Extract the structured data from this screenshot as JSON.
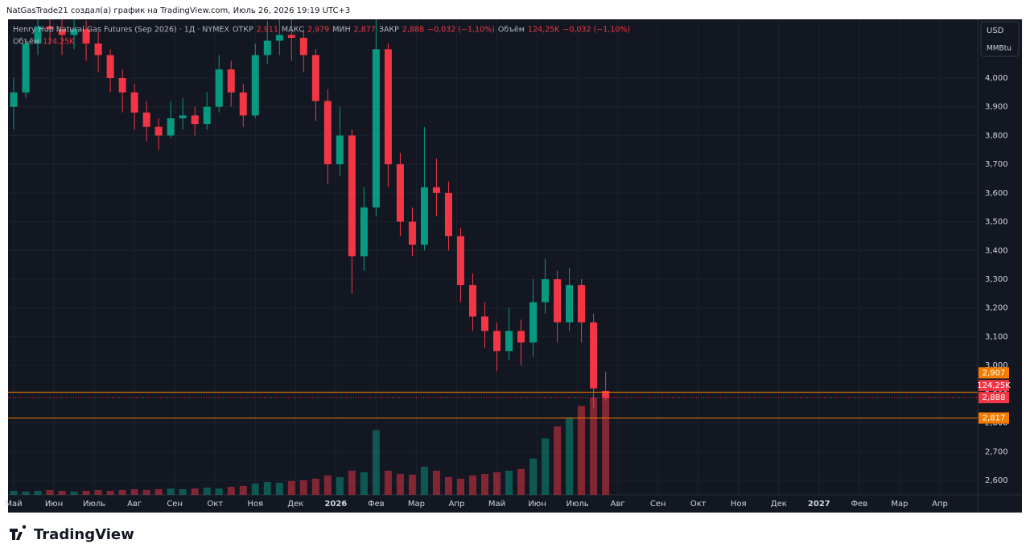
{
  "header": {
    "credit": "NatGasTrade21 создал(а) график на TradingView.com, Июль 26, 2026 19:19 UTC+3"
  },
  "chart_data": {
    "type": "candlestick",
    "legend": {
      "symbol": "Henry Hub Natural Gas Futures (Sep 2026) · 1Д · NYMEX",
      "open_label": "ОТКР",
      "open": "2,911",
      "high_label": "МАКС",
      "high": "2,979",
      "low_label": "МИН",
      "low": "2,877",
      "close_label": "ЗАКР",
      "close": "2,888",
      "change": "−0,032 (−1,10%)",
      "volume_label": "Объём",
      "volume": "124,25K",
      "volume_change": "−0,032 (−1,10%)"
    },
    "currency": "USD",
    "unit": "MMBtu",
    "up_color": "#089981",
    "down_color": "#f23645",
    "x": [
      0,
      0.3,
      0.6,
      0.9,
      1.2,
      1.5,
      1.8,
      2.1,
      2.4,
      2.7,
      3.0,
      3.3,
      3.6,
      3.9,
      4.2,
      4.5,
      4.8,
      5.1,
      5.4,
      5.7,
      6.0,
      6.3,
      6.6,
      6.9,
      7.2,
      7.5,
      7.8,
      8.1,
      8.4,
      8.7,
      9.0,
      9.3,
      9.6,
      9.9,
      10.2,
      10.5,
      10.8,
      11.1,
      11.4,
      11.7,
      12.0,
      12.3,
      12.6,
      12.9,
      13.2,
      13.5,
      13.8,
      14.1,
      14.4,
      14.7
    ],
    "open": [
      3.9,
      3.95,
      4.12,
      4.18,
      4.17,
      4.15,
      4.17,
      4.12,
      4.08,
      4.0,
      3.95,
      3.88,
      3.83,
      3.8,
      3.86,
      3.87,
      3.84,
      3.9,
      4.03,
      3.95,
      3.87,
      4.08,
      4.13,
      4.15,
      4.14,
      4.08,
      3.92,
      3.7,
      3.8,
      3.38,
      3.55,
      4.1,
      3.7,
      3.5,
      3.42,
      3.62,
      3.6,
      3.45,
      3.28,
      3.17,
      3.12,
      3.05,
      3.12,
      3.08,
      3.22,
      3.3,
      3.15,
      3.28,
      3.15,
      2.911
    ],
    "high": [
      4.0,
      4.14,
      4.22,
      4.22,
      4.21,
      4.22,
      4.2,
      4.16,
      4.1,
      4.03,
      3.98,
      3.92,
      3.86,
      3.92,
      3.93,
      3.9,
      3.95,
      4.08,
      4.06,
      3.98,
      4.12,
      4.2,
      4.22,
      4.22,
      4.17,
      4.1,
      3.96,
      3.9,
      3.82,
      3.62,
      4.22,
      4.12,
      3.74,
      3.55,
      3.83,
      3.72,
      3.64,
      3.48,
      3.32,
      3.22,
      3.15,
      3.2,
      3.16,
      3.3,
      3.37,
      3.33,
      3.34,
      3.3,
      3.18,
      2.979
    ],
    "low": [
      3.82,
      3.93,
      4.08,
      4.12,
      4.08,
      4.1,
      4.06,
      4.02,
      3.95,
      3.88,
      3.82,
      3.78,
      3.75,
      3.79,
      3.82,
      3.8,
      3.82,
      3.88,
      3.9,
      3.83,
      3.86,
      4.05,
      4.08,
      4.06,
      4.02,
      3.85,
      3.63,
      3.66,
      3.25,
      3.33,
      3.52,
      3.62,
      3.45,
      3.38,
      3.4,
      3.52,
      3.4,
      3.22,
      3.12,
      3.06,
      2.98,
      3.02,
      3.0,
      3.03,
      3.18,
      3.08,
      3.12,
      3.08,
      2.85,
      2.877
    ],
    "close": [
      3.95,
      4.12,
      4.18,
      4.17,
      4.15,
      4.17,
      4.12,
      4.08,
      4.0,
      3.95,
      3.88,
      3.83,
      3.8,
      3.86,
      3.87,
      3.84,
      3.9,
      4.03,
      3.95,
      3.87,
      4.08,
      4.13,
      4.15,
      4.14,
      4.08,
      3.92,
      3.7,
      3.8,
      3.38,
      3.55,
      4.1,
      3.7,
      3.5,
      3.42,
      3.62,
      3.6,
      3.45,
      3.28,
      3.17,
      3.12,
      3.05,
      3.12,
      3.08,
      3.22,
      3.3,
      3.15,
      3.28,
      3.15,
      2.92,
      2.888
    ],
    "volume": [
      5,
      4,
      5,
      6,
      5,
      4,
      5,
      6,
      5,
      6,
      7,
      6,
      7,
      8,
      7,
      8,
      9,
      8,
      10,
      11,
      14,
      16,
      15,
      17,
      18,
      20,
      24,
      22,
      30,
      28,
      80,
      30,
      26,
      25,
      35,
      30,
      22,
      20,
      24,
      26,
      28,
      30,
      32,
      45,
      70,
      85,
      95,
      110,
      120,
      124.25
    ],
    "volume_tag": "124,25K",
    "volume_ylim": [
      0,
      589
    ],
    "last_price": {
      "value": 2.888,
      "label": "2,888"
    },
    "levels": [
      {
        "value": 2.907,
        "label": "2,907",
        "color": "#f57c00"
      },
      {
        "value": 2.817,
        "label": "2,817",
        "color": "#f57c00"
      }
    ],
    "xlim": [
      -0.14,
      23.94
    ],
    "xticks": [
      {
        "value": 0,
        "label": "Май"
      },
      {
        "value": 1,
        "label": "Июн"
      },
      {
        "value": 2,
        "label": "Июль"
      },
      {
        "value": 3,
        "label": "Авг"
      },
      {
        "value": 4,
        "label": "Сен"
      },
      {
        "value": 5,
        "label": "Окт"
      },
      {
        "value": 6,
        "label": "Ноя"
      },
      {
        "value": 7,
        "label": "Дек"
      },
      {
        "value": 8,
        "label": "2026"
      },
      {
        "value": 9,
        "label": "Фев"
      },
      {
        "value": 10,
        "label": "Мар"
      },
      {
        "value": 11,
        "label": "Апр"
      },
      {
        "value": 12,
        "label": "Май"
      },
      {
        "value": 13,
        "label": "Июн"
      },
      {
        "value": 14,
        "label": "Июль"
      },
      {
        "value": 15,
        "label": "Авг"
      },
      {
        "value": 16,
        "label": "Сен"
      },
      {
        "value": 17,
        "label": "Окт"
      },
      {
        "value": 18,
        "label": "Ноя"
      },
      {
        "value": 19,
        "label": "Дек"
      },
      {
        "value": 20,
        "label": "2027"
      },
      {
        "value": 21,
        "label": "Фев"
      },
      {
        "value": 22,
        "label": "Мар"
      },
      {
        "value": 23,
        "label": "Апр"
      }
    ],
    "ylim": [
      2.5496,
      4.2044
    ],
    "yticks": [
      {
        "value": 2.6,
        "label": "2,600"
      },
      {
        "value": 2.7,
        "label": "2,700"
      },
      {
        "value": 2.8,
        "label": "2,800"
      },
      {
        "value": 2.9,
        "label": "2,900"
      },
      {
        "value": 3.0,
        "label": "3,000"
      },
      {
        "value": 3.1,
        "label": "3,100"
      },
      {
        "value": 3.2,
        "label": "3,200"
      },
      {
        "value": 3.3,
        "label": "3,300"
      },
      {
        "value": 3.4,
        "label": "3,400"
      },
      {
        "value": 3.5,
        "label": "3,500"
      },
      {
        "value": 3.6,
        "label": "3,600"
      },
      {
        "value": 3.7,
        "label": "3,700"
      },
      {
        "value": 3.8,
        "label": "3,800"
      },
      {
        "value": 3.9,
        "label": "3,900"
      },
      {
        "value": 4.0,
        "label": "4,000"
      }
    ],
    "grid": true
  },
  "footer": {
    "brand": "TradingView"
  }
}
